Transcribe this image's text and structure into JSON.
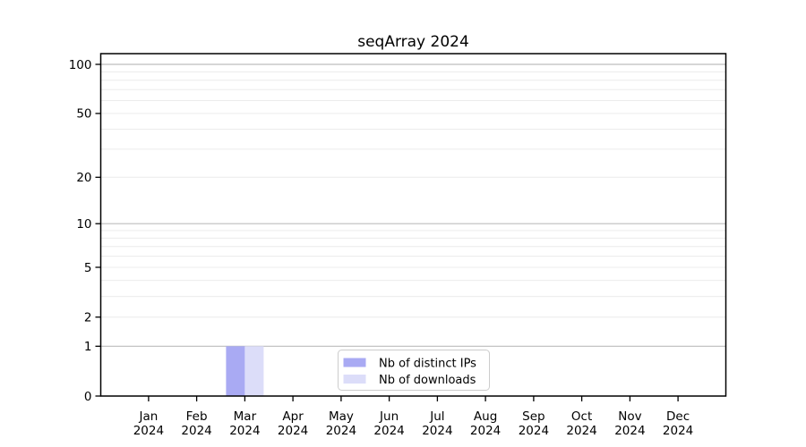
{
  "title": "seqArray 2024",
  "colors": {
    "bar_distinct_ips": "#a9aaf3",
    "bar_downloads": "#dcddf9",
    "grid_major": "#bdbdbd",
    "grid_minor": "#ececec",
    "axis": "#000000",
    "legend_border": "#cccccc",
    "background": "#ffffff"
  },
  "legend": {
    "position": "lower-center-inside",
    "items": [
      {
        "label": "Nb of distinct IPs",
        "color": "#a9aaf3"
      },
      {
        "label": "Nb of downloads",
        "color": "#dcddf9"
      }
    ]
  },
  "chart_data": {
    "type": "bar",
    "title": "seqArray 2024",
    "categories": [
      "Jan 2024",
      "Feb 2024",
      "Mar 2024",
      "Apr 2024",
      "May 2024",
      "Jun 2024",
      "Jul 2024",
      "Aug 2024",
      "Sep 2024",
      "Oct 2024",
      "Nov 2024",
      "Dec 2024"
    ],
    "series": [
      {
        "name": "Nb of distinct IPs",
        "color": "#a9aaf3",
        "values": [
          0,
          0,
          1,
          0,
          0,
          0,
          0,
          0,
          0,
          0,
          0,
          0
        ]
      },
      {
        "name": "Nb of downloads",
        "color": "#dcddf9",
        "values": [
          0,
          0,
          1,
          0,
          0,
          0,
          0,
          0,
          0,
          0,
          0,
          0
        ]
      }
    ],
    "xlabel": "",
    "ylabel": "",
    "y_scale": "log10(value+1)",
    "y_tick_labels": [
      "0",
      "1",
      "2",
      "5",
      "10",
      "20",
      "50",
      "100"
    ],
    "y_ticks_labeled_values": [
      0,
      1,
      2,
      5,
      10,
      20,
      50,
      100
    ],
    "y_grid_major_values": [
      1,
      10,
      100
    ],
    "y_grid_minor_values": [
      2,
      3,
      4,
      5,
      6,
      7,
      8,
      9,
      20,
      30,
      40,
      50,
      60,
      70,
      80,
      90
    ],
    "ylim": [
      0,
      116
    ],
    "grid": true,
    "legend_position": "lower center inside"
  }
}
